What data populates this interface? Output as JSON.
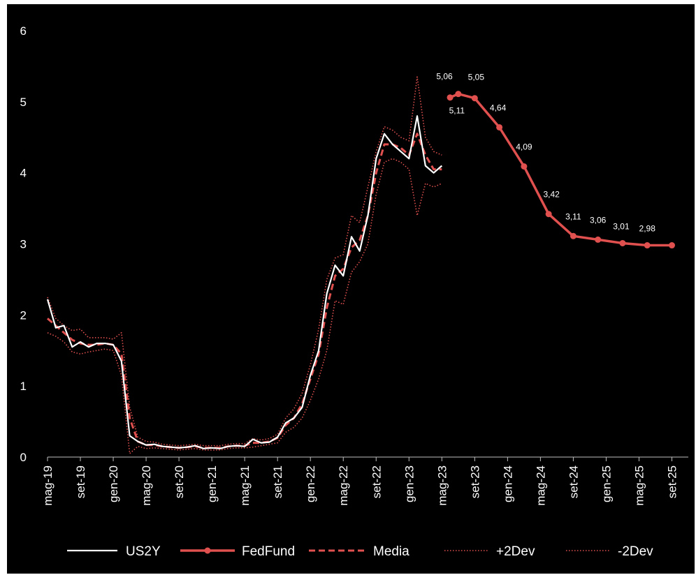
{
  "chart_data": {
    "type": "line",
    "title": "",
    "xlabel": "",
    "ylabel": "",
    "ylim": [
      0,
      6
    ],
    "y_ticks": [
      "0",
      "1",
      "2",
      "3",
      "4",
      "5",
      "6"
    ],
    "x_ticks": [
      "mag-19",
      "set-19",
      "gen-20",
      "mag-20",
      "set-20",
      "gen-21",
      "mag-21",
      "set-21",
      "gen-22",
      "mag-22",
      "set-22",
      "gen-23",
      "mag-23",
      "set-23",
      "gen-24",
      "mag-24",
      "set-24",
      "gen-25",
      "mag-25",
      "set-25"
    ],
    "grid": false,
    "legend_position": "bottom",
    "background": "#000000",
    "series": [
      {
        "name": "US2Y",
        "color": "#ffffff",
        "style": "solid",
        "x": [
          "2019-05",
          "2019-06",
          "2019-07",
          "2019-08",
          "2019-09",
          "2019-10",
          "2019-11",
          "2019-12",
          "2020-01",
          "2020-02",
          "2020-03",
          "2020-04",
          "2020-05",
          "2020-06",
          "2020-07",
          "2020-08",
          "2020-09",
          "2020-10",
          "2020-11",
          "2020-12",
          "2021-01",
          "2021-02",
          "2021-03",
          "2021-04",
          "2021-05",
          "2021-06",
          "2021-07",
          "2021-08",
          "2021-09",
          "2021-10",
          "2021-11",
          "2021-12",
          "2022-01",
          "2022-02",
          "2022-03",
          "2022-04",
          "2022-05",
          "2022-06",
          "2022-07",
          "2022-08",
          "2022-09",
          "2022-10",
          "2022-11",
          "2022-12",
          "2023-01",
          "2023-02",
          "2023-03",
          "2023-04",
          "2023-05"
        ],
        "values": [
          2.22,
          1.82,
          1.85,
          1.55,
          1.62,
          1.55,
          1.6,
          1.6,
          1.58,
          1.35,
          0.3,
          0.22,
          0.17,
          0.18,
          0.15,
          0.14,
          0.13,
          0.14,
          0.16,
          0.12,
          0.13,
          0.12,
          0.15,
          0.16,
          0.15,
          0.25,
          0.2,
          0.21,
          0.28,
          0.48,
          0.55,
          0.7,
          1.15,
          1.5,
          2.3,
          2.7,
          2.55,
          3.1,
          2.9,
          3.4,
          4.2,
          4.55,
          4.4,
          4.3,
          4.2,
          4.8,
          4.1,
          4.0,
          4.1
        ]
      },
      {
        "name": "FedFund",
        "color": "#e0504f",
        "style": "solid-markers",
        "x": [
          "2023-06",
          "2023-07",
          "2023-09",
          "2023-12",
          "2024-03",
          "2024-06",
          "2024-09",
          "2024-12",
          "2025-03",
          "2025-06",
          "2025-09"
        ],
        "values": [
          5.06,
          5.11,
          5.05,
          4.64,
          4.09,
          3.42,
          3.11,
          3.06,
          3.01,
          2.98,
          2.98
        ],
        "labels": [
          "5,06",
          "5,11",
          "5,05",
          "4,64",
          "4,09",
          "3,42",
          "3,11",
          "3,06",
          "3,01",
          "2,98"
        ]
      },
      {
        "name": "Media",
        "color": "#e0504f",
        "style": "dashed",
        "x": [
          "2019-05",
          "2019-06",
          "2019-07",
          "2019-08",
          "2019-09",
          "2019-10",
          "2019-11",
          "2019-12",
          "2020-01",
          "2020-02",
          "2020-03",
          "2020-04",
          "2020-05",
          "2020-06",
          "2020-07",
          "2020-08",
          "2020-09",
          "2020-10",
          "2020-11",
          "2020-12",
          "2021-01",
          "2021-02",
          "2021-03",
          "2021-04",
          "2021-05",
          "2021-06",
          "2021-07",
          "2021-08",
          "2021-09",
          "2021-10",
          "2021-11",
          "2021-12",
          "2022-01",
          "2022-02",
          "2022-03",
          "2022-04",
          "2022-05",
          "2022-06",
          "2022-07",
          "2022-08",
          "2022-09",
          "2022-10",
          "2022-11",
          "2022-12",
          "2023-01",
          "2023-02",
          "2023-03",
          "2023-04",
          "2023-05"
        ],
        "values": [
          1.95,
          1.85,
          1.75,
          1.65,
          1.6,
          1.58,
          1.58,
          1.6,
          1.58,
          1.45,
          0.55,
          0.22,
          0.17,
          0.17,
          0.15,
          0.14,
          0.13,
          0.14,
          0.15,
          0.13,
          0.13,
          0.13,
          0.15,
          0.16,
          0.16,
          0.2,
          0.2,
          0.22,
          0.27,
          0.45,
          0.55,
          0.75,
          1.1,
          1.45,
          2.1,
          2.55,
          2.65,
          2.95,
          3.05,
          3.4,
          4.0,
          4.4,
          4.4,
          4.35,
          4.25,
          4.55,
          4.25,
          4.05,
          4.05
        ]
      },
      {
        "name": "+2Dev",
        "color": "#e0504f",
        "style": "dotted",
        "x": [
          "2019-05",
          "2019-06",
          "2019-07",
          "2019-08",
          "2019-09",
          "2019-10",
          "2019-11",
          "2019-12",
          "2020-01",
          "2020-02",
          "2020-03",
          "2020-04",
          "2020-05",
          "2020-06",
          "2020-07",
          "2020-08",
          "2020-09",
          "2020-10",
          "2020-11",
          "2020-12",
          "2021-01",
          "2021-02",
          "2021-03",
          "2021-04",
          "2021-05",
          "2021-06",
          "2021-07",
          "2021-08",
          "2021-09",
          "2021-10",
          "2021-11",
          "2021-12",
          "2022-01",
          "2022-02",
          "2022-03",
          "2022-04",
          "2022-05",
          "2022-06",
          "2022-07",
          "2022-08",
          "2022-09",
          "2022-10",
          "2022-11",
          "2022-12",
          "2023-01",
          "2023-02",
          "2023-03",
          "2023-04",
          "2023-05"
        ],
        "values": [
          2.25,
          1.95,
          1.85,
          1.78,
          1.8,
          1.68,
          1.68,
          1.68,
          1.66,
          1.75,
          0.7,
          0.28,
          0.22,
          0.21,
          0.18,
          0.17,
          0.16,
          0.17,
          0.18,
          0.16,
          0.16,
          0.16,
          0.18,
          0.19,
          0.19,
          0.26,
          0.24,
          0.26,
          0.32,
          0.55,
          0.68,
          0.9,
          1.3,
          1.8,
          2.5,
          2.8,
          2.85,
          3.4,
          3.3,
          3.8,
          4.3,
          4.65,
          4.6,
          4.5,
          4.45,
          5.35,
          4.5,
          4.3,
          4.25
        ]
      },
      {
        "name": "-2Dev",
        "color": "#e0504f",
        "style": "dotted",
        "x": [
          "2019-05",
          "2019-06",
          "2019-07",
          "2019-08",
          "2019-09",
          "2019-10",
          "2019-11",
          "2019-12",
          "2020-01",
          "2020-02",
          "2020-03",
          "2020-04",
          "2020-05",
          "2020-06",
          "2020-07",
          "2020-08",
          "2020-09",
          "2020-10",
          "2020-11",
          "2020-12",
          "2021-01",
          "2021-02",
          "2021-03",
          "2021-04",
          "2021-05",
          "2021-06",
          "2021-07",
          "2021-08",
          "2021-09",
          "2021-10",
          "2021-11",
          "2021-12",
          "2022-01",
          "2022-02",
          "2022-03",
          "2022-04",
          "2022-05",
          "2022-06",
          "2022-07",
          "2022-08",
          "2022-09",
          "2022-10",
          "2022-11",
          "2022-12",
          "2023-01",
          "2023-02",
          "2023-03",
          "2023-04",
          "2023-05"
        ],
        "values": [
          1.75,
          1.7,
          1.62,
          1.48,
          1.45,
          1.48,
          1.5,
          1.52,
          1.5,
          1.15,
          0.05,
          0.15,
          0.12,
          0.13,
          0.12,
          0.11,
          0.1,
          0.11,
          0.12,
          0.1,
          0.1,
          0.1,
          0.12,
          0.13,
          0.13,
          0.14,
          0.16,
          0.18,
          0.2,
          0.35,
          0.42,
          0.55,
          0.8,
          1.1,
          1.5,
          2.2,
          2.15,
          2.6,
          2.75,
          3.0,
          3.7,
          4.15,
          4.2,
          4.15,
          4.05,
          3.4,
          3.85,
          3.8,
          3.85
        ]
      }
    ]
  }
}
